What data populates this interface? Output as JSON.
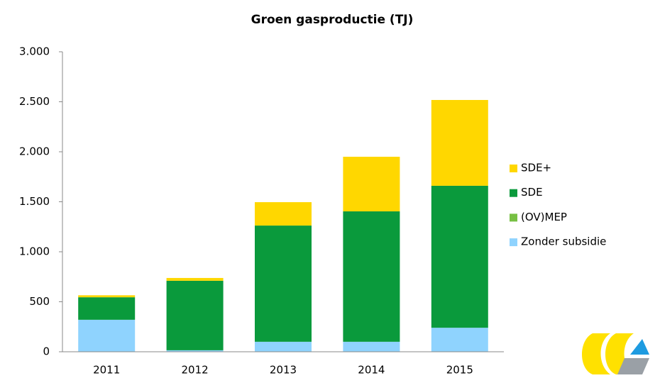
{
  "chart_data": {
    "type": "stacked_bar",
    "title": "Groen gasproductie (TJ)",
    "categories": [
      "2011",
      "2012",
      "2013",
      "2014",
      "2015"
    ],
    "series": [
      {
        "name": "Zonder subsidie",
        "color": "#8fd3fe",
        "values": [
          320,
          15,
          100,
          100,
          240
        ]
      },
      {
        "name": "(OV)MEP",
        "color": "#77c043",
        "values": [
          0,
          0,
          0,
          0,
          0
        ]
      },
      {
        "name": "SDE",
        "color": "#0a9a3c",
        "values": [
          225,
          695,
          1162,
          1304,
          1420
        ]
      },
      {
        "name": "SDE+",
        "color": "#ffd700",
        "values": [
          20,
          28,
          234,
          546,
          858
        ]
      }
    ],
    "ylim": [
      0,
      3000
    ],
    "yticks": [
      0,
      500,
      {
        "value": 1000,
        "label": "1.000"
      },
      {
        "value": 1500,
        "label": "1.500"
      },
      {
        "value": 2000,
        "label": "2.000"
      },
      {
        "value": 2500,
        "label": "2.500"
      },
      {
        "value": 3000,
        "label": "3.000"
      }
    ],
    "legend": "right"
  }
}
